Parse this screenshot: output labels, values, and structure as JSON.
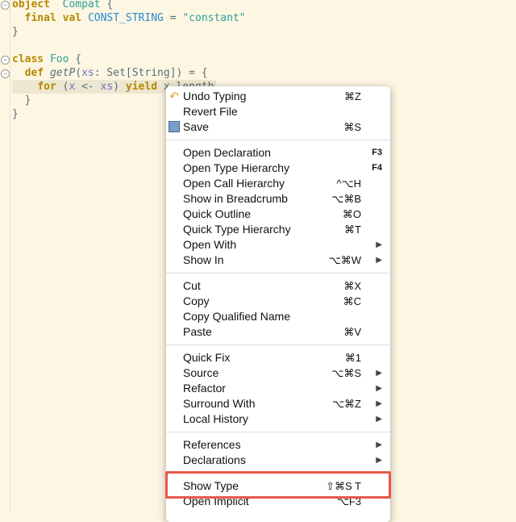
{
  "code": {
    "lines": [
      {
        "tokens": [
          [
            "kw",
            "object"
          ],
          [
            "",
            "  "
          ],
          [
            "ty",
            "Compat"
          ],
          [
            "",
            " {"
          ]
        ]
      },
      {
        "tokens": [
          [
            "",
            "  "
          ],
          [
            "kw",
            "final"
          ],
          [
            "",
            " "
          ],
          [
            "kw",
            "val"
          ],
          [
            "",
            " "
          ],
          [
            "id",
            "CONST_STRING"
          ],
          [
            "",
            " = "
          ],
          [
            "str",
            "\"constant\""
          ]
        ]
      },
      {
        "tokens": [
          [
            "",
            "}"
          ]
        ]
      },
      {
        "tokens": []
      },
      {
        "tokens": [
          [
            "kw",
            "class"
          ],
          [
            "",
            " "
          ],
          [
            "ty",
            "Foo"
          ],
          [
            "",
            " {"
          ]
        ]
      },
      {
        "tokens": [
          [
            "",
            "  "
          ],
          [
            "kw",
            "def"
          ],
          [
            "",
            " "
          ],
          [
            "it",
            "getP"
          ],
          [
            "",
            "("
          ],
          [
            "v",
            "xs"
          ],
          [
            "",
            ": "
          ],
          [
            "",
            "Set[String]) = {"
          ]
        ]
      },
      {
        "tokens": [
          [
            "",
            "    "
          ],
          [
            "kw",
            "for"
          ],
          [
            "",
            " ("
          ],
          [
            "v",
            "x"
          ],
          [
            "",
            " <- "
          ],
          [
            "v",
            "xs"
          ],
          [
            "",
            ") "
          ],
          [
            "kw",
            "yield"
          ],
          [
            "",
            " x.length"
          ]
        ],
        "highlight": true
      },
      {
        "tokens": [
          [
            "",
            "  }"
          ]
        ]
      },
      {
        "tokens": [
          [
            "",
            "}"
          ]
        ]
      }
    ]
  },
  "menu": {
    "groups": [
      [
        {
          "label": "Undo Typing",
          "shortcut": "⌘Z",
          "icon": "undo-icon"
        },
        {
          "label": "Revert File"
        },
        {
          "label": "Save",
          "shortcut": "⌘S",
          "icon": "save-icon"
        }
      ],
      [
        {
          "label": "Open Declaration",
          "shortcut": "F3",
          "fkey": true
        },
        {
          "label": "Open Type Hierarchy",
          "shortcut": "F4",
          "fkey": true
        },
        {
          "label": "Open Call Hierarchy",
          "shortcut": "^⌥H"
        },
        {
          "label": "Show in Breadcrumb",
          "shortcut": "⌥⌘B"
        },
        {
          "label": "Quick Outline",
          "shortcut": "⌘O"
        },
        {
          "label": "Quick Type Hierarchy",
          "shortcut": "⌘T"
        },
        {
          "label": "Open With",
          "submenu": true
        },
        {
          "label": "Show In",
          "shortcut": "⌥⌘W",
          "submenu": true
        }
      ],
      [
        {
          "label": "Cut",
          "shortcut": "⌘X"
        },
        {
          "label": "Copy",
          "shortcut": "⌘C"
        },
        {
          "label": "Copy Qualified Name"
        },
        {
          "label": "Paste",
          "shortcut": "⌘V"
        }
      ],
      [
        {
          "label": "Quick Fix",
          "shortcut": "⌘1"
        },
        {
          "label": "Source",
          "shortcut": "⌥⌘S",
          "submenu": true
        },
        {
          "label": "Refactor",
          "submenu": true
        },
        {
          "label": "Surround With",
          "shortcut": "⌥⌘Z",
          "submenu": true
        },
        {
          "label": "Local History",
          "submenu": true
        }
      ],
      [
        {
          "label": "References",
          "submenu": true
        },
        {
          "label": "Declarations",
          "submenu": true
        }
      ],
      [
        {
          "label": "Show Type",
          "shortcut": "⇧⌘S T",
          "highlighted": true
        },
        {
          "label": "Open Implicit",
          "shortcut": "⌥F3"
        }
      ]
    ],
    "highlight_color": "#e8584c"
  }
}
